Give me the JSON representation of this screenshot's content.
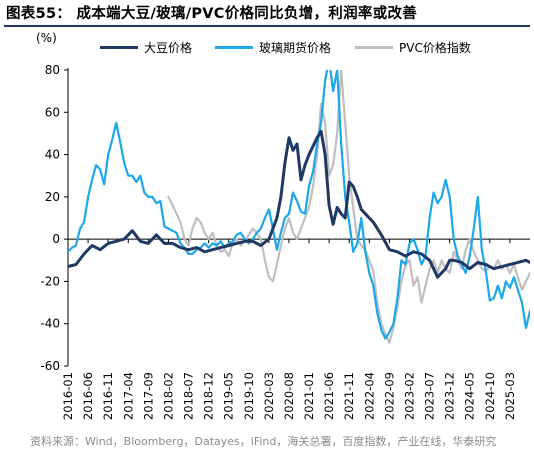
{
  "figure": {
    "title": "图表55：  成本端大豆/玻璃/PVC价格同比负增，利润率或改善",
    "unit_label": "(%)",
    "source": "资料来源：Wind，Bloomberg，Datayes，iFind，海关总署，百度指数，产业在线，华泰研究"
  },
  "chart_data": {
    "type": "line",
    "title": "",
    "xlabel": "",
    "ylabel": "(%)",
    "ylim": [
      -60,
      80
    ],
    "yticks": [
      -60,
      -40,
      -20,
      0,
      20,
      40,
      60,
      80
    ],
    "xlim": [
      "2016-01",
      "2025-08"
    ],
    "xticks": [
      "2016-01",
      "2016-06",
      "2016-11",
      "2017-04",
      "2017-09",
      "2018-02",
      "2018-07",
      "2018-12",
      "2019-05",
      "2019-10",
      "2020-03",
      "2020-08",
      "2021-01",
      "2021-06",
      "2021-11",
      "2022-04",
      "2022-09",
      "2023-02",
      "2023-07",
      "2023-12",
      "2024-05",
      "2024-10",
      "2025-03"
    ],
    "grid": false,
    "legend_position": "top",
    "series": [
      {
        "name": "大豆价格",
        "color": "#1f3864",
        "width": 3,
        "points": [
          [
            "2016-01",
            -13
          ],
          [
            "2016-03",
            -12
          ],
          [
            "2016-05",
            -7
          ],
          [
            "2016-07",
            -3
          ],
          [
            "2016-09",
            -5
          ],
          [
            "2016-11",
            -2
          ],
          [
            "2017-01",
            -1
          ],
          [
            "2017-03",
            0
          ],
          [
            "2017-05",
            4
          ],
          [
            "2017-07",
            -1
          ],
          [
            "2017-09",
            -2
          ],
          [
            "2017-11",
            2
          ],
          [
            "2018-01",
            -2
          ],
          [
            "2018-03",
            -2
          ],
          [
            "2018-05",
            -4
          ],
          [
            "2018-07",
            -5
          ],
          [
            "2018-09",
            -4
          ],
          [
            "2018-11",
            -6
          ],
          [
            "2019-01",
            -5
          ],
          [
            "2019-03",
            -4
          ],
          [
            "2019-05",
            -3
          ],
          [
            "2019-07",
            -2
          ],
          [
            "2019-09",
            -1
          ],
          [
            "2019-11",
            -1
          ],
          [
            "2020-01",
            -3
          ],
          [
            "2020-03",
            0
          ],
          [
            "2020-05",
            10
          ],
          [
            "2020-06",
            20
          ],
          [
            "2020-07",
            36
          ],
          [
            "2020-08",
            48
          ],
          [
            "2020-09",
            42
          ],
          [
            "2020-10",
            45
          ],
          [
            "2020-11",
            28
          ],
          [
            "2020-12",
            35
          ],
          [
            "2021-01",
            40
          ],
          [
            "2021-03",
            48
          ],
          [
            "2021-04",
            51
          ],
          [
            "2021-05",
            40
          ],
          [
            "2021-06",
            16
          ],
          [
            "2021-07",
            7
          ],
          [
            "2021-08",
            15
          ],
          [
            "2021-09",
            12
          ],
          [
            "2021-10",
            10
          ],
          [
            "2021-11",
            27
          ],
          [
            "2021-12",
            25
          ],
          [
            "2022-01",
            20
          ],
          [
            "2022-02",
            14
          ],
          [
            "2022-03",
            12
          ],
          [
            "2022-05",
            8
          ],
          [
            "2022-07",
            2
          ],
          [
            "2022-09",
            -5
          ],
          [
            "2022-11",
            -6
          ],
          [
            "2023-01",
            -8
          ],
          [
            "2023-03",
            -6
          ],
          [
            "2023-05",
            -7
          ],
          [
            "2023-07",
            -10
          ],
          [
            "2023-09",
            -18
          ],
          [
            "2023-11",
            -14
          ],
          [
            "2023-12",
            -10
          ],
          [
            "2024-01",
            -10
          ],
          [
            "2024-03",
            -11
          ],
          [
            "2024-05",
            -14
          ],
          [
            "2024-07",
            -11
          ],
          [
            "2024-09",
            -12
          ],
          [
            "2024-11",
            -14
          ],
          [
            "2025-01",
            -13
          ],
          [
            "2025-03",
            -12
          ],
          [
            "2025-05",
            -11
          ],
          [
            "2025-07",
            -10
          ],
          [
            "2025-08",
            -11
          ]
        ]
      },
      {
        "name": "玻璃期货价格",
        "color": "#1ba7e8",
        "width": 2.2,
        "points": [
          [
            "2016-01",
            -6
          ],
          [
            "2016-02",
            -4
          ],
          [
            "2016-03",
            -3
          ],
          [
            "2016-04",
            5
          ],
          [
            "2016-05",
            8
          ],
          [
            "2016-06",
            20
          ],
          [
            "2016-07",
            28
          ],
          [
            "2016-08",
            35
          ],
          [
            "2016-09",
            33
          ],
          [
            "2016-10",
            26
          ],
          [
            "2016-11",
            40
          ],
          [
            "2016-12",
            47
          ],
          [
            "2017-01",
            55
          ],
          [
            "2017-02",
            46
          ],
          [
            "2017-03",
            36
          ],
          [
            "2017-04",
            30
          ],
          [
            "2017-05",
            30
          ],
          [
            "2017-06",
            27
          ],
          [
            "2017-07",
            30
          ],
          [
            "2017-08",
            22
          ],
          [
            "2017-09",
            20
          ],
          [
            "2017-10",
            20
          ],
          [
            "2017-11",
            17
          ],
          [
            "2017-12",
            18
          ],
          [
            "2018-01",
            6
          ],
          [
            "2018-02",
            5
          ],
          [
            "2018-03",
            4
          ],
          [
            "2018-04",
            3
          ],
          [
            "2018-05",
            -2
          ],
          [
            "2018-06",
            -4
          ],
          [
            "2018-07",
            -7
          ],
          [
            "2018-08",
            -7
          ],
          [
            "2018-09",
            -5
          ],
          [
            "2018-10",
            -4
          ],
          [
            "2018-11",
            -2
          ],
          [
            "2018-12",
            -4
          ],
          [
            "2019-01",
            -2
          ],
          [
            "2019-02",
            -3
          ],
          [
            "2019-03",
            -1
          ],
          [
            "2019-04",
            -4
          ],
          [
            "2019-05",
            -2
          ],
          [
            "2019-06",
            -1
          ],
          [
            "2019-07",
            2
          ],
          [
            "2019-08",
            3
          ],
          [
            "2019-09",
            0
          ],
          [
            "2019-10",
            -2
          ],
          [
            "2019-11",
            0
          ],
          [
            "2019-12",
            3
          ],
          [
            "2020-01",
            5
          ],
          [
            "2020-02",
            10
          ],
          [
            "2020-03",
            14
          ],
          [
            "2020-04",
            5
          ],
          [
            "2020-05",
            -5
          ],
          [
            "2020-06",
            3
          ],
          [
            "2020-07",
            10
          ],
          [
            "2020-08",
            12
          ],
          [
            "2020-09",
            22
          ],
          [
            "2020-10",
            18
          ],
          [
            "2020-11",
            13
          ],
          [
            "2020-12",
            12
          ],
          [
            "2021-01",
            25
          ],
          [
            "2021-02",
            32
          ],
          [
            "2021-03",
            45
          ],
          [
            "2021-04",
            55
          ],
          [
            "2021-05",
            75
          ],
          [
            "2021-06",
            85
          ],
          [
            "2021-07",
            70
          ],
          [
            "2021-08",
            80
          ],
          [
            "2021-09",
            45
          ],
          [
            "2021-10",
            20
          ],
          [
            "2021-11",
            8
          ],
          [
            "2021-12",
            -6
          ],
          [
            "2022-01",
            -2
          ],
          [
            "2022-02",
            10
          ],
          [
            "2022-03",
            -6
          ],
          [
            "2022-04",
            -16
          ],
          [
            "2022-05",
            -22
          ],
          [
            "2022-06",
            -35
          ],
          [
            "2022-07",
            -43
          ],
          [
            "2022-08",
            -47
          ],
          [
            "2022-09",
            -44
          ],
          [
            "2022-10",
            -40
          ],
          [
            "2022-11",
            -28
          ],
          [
            "2022-12",
            -10
          ],
          [
            "2023-01",
            -12
          ],
          [
            "2023-02",
            -2
          ],
          [
            "2023-03",
            0
          ],
          [
            "2023-04",
            -5
          ],
          [
            "2023-05",
            -12
          ],
          [
            "2023-06",
            -8
          ],
          [
            "2023-07",
            10
          ],
          [
            "2023-08",
            22
          ],
          [
            "2023-09",
            17
          ],
          [
            "2023-10",
            20
          ],
          [
            "2023-11",
            28
          ],
          [
            "2023-12",
            20
          ],
          [
            "2024-01",
            0
          ],
          [
            "2024-02",
            -8
          ],
          [
            "2024-03",
            -12
          ],
          [
            "2024-04",
            -16
          ],
          [
            "2024-05",
            -8
          ],
          [
            "2024-06",
            5
          ],
          [
            "2024-07",
            20
          ],
          [
            "2024-08",
            -5
          ],
          [
            "2024-09",
            -15
          ],
          [
            "2024-10",
            -29
          ],
          [
            "2024-11",
            -28
          ],
          [
            "2024-12",
            -22
          ],
          [
            "2025-01",
            -28
          ],
          [
            "2025-02",
            -20
          ],
          [
            "2025-03",
            -23
          ],
          [
            "2025-04",
            -18
          ],
          [
            "2025-05",
            -24
          ],
          [
            "2025-06",
            -30
          ],
          [
            "2025-07",
            -42
          ],
          [
            "2025-08",
            -34
          ]
        ]
      },
      {
        "name": "PVC价格指数",
        "color": "#bfbfbf",
        "width": 2.2,
        "points": [
          [
            "2018-02",
            20
          ],
          [
            "2018-03",
            16
          ],
          [
            "2018-04",
            12
          ],
          [
            "2018-05",
            8
          ],
          [
            "2018-06",
            0
          ],
          [
            "2018-07",
            -3
          ],
          [
            "2018-08",
            5
          ],
          [
            "2018-09",
            10
          ],
          [
            "2018-10",
            8
          ],
          [
            "2018-11",
            3
          ],
          [
            "2018-12",
            0
          ],
          [
            "2019-01",
            3
          ],
          [
            "2019-02",
            -3
          ],
          [
            "2019-03",
            -6
          ],
          [
            "2019-04",
            -5
          ],
          [
            "2019-05",
            -8
          ],
          [
            "2019-06",
            -2
          ],
          [
            "2019-07",
            0
          ],
          [
            "2019-08",
            -3
          ],
          [
            "2019-09",
            -1
          ],
          [
            "2019-10",
            2
          ],
          [
            "2019-11",
            5
          ],
          [
            "2019-12",
            3
          ],
          [
            "2020-01",
            0
          ],
          [
            "2020-02",
            -10
          ],
          [
            "2020-03",
            -18
          ],
          [
            "2020-04",
            -20
          ],
          [
            "2020-05",
            -12
          ],
          [
            "2020-06",
            -3
          ],
          [
            "2020-07",
            5
          ],
          [
            "2020-08",
            10
          ],
          [
            "2020-09",
            3
          ],
          [
            "2020-10",
            0
          ],
          [
            "2020-11",
            5
          ],
          [
            "2020-12",
            10
          ],
          [
            "2021-01",
            15
          ],
          [
            "2021-02",
            25
          ],
          [
            "2021-03",
            40
          ],
          [
            "2021-04",
            64
          ],
          [
            "2021-05",
            55
          ],
          [
            "2021-06",
            30
          ],
          [
            "2021-07",
            35
          ],
          [
            "2021-08",
            50
          ],
          [
            "2021-09",
            80
          ],
          [
            "2021-10",
            55
          ],
          [
            "2021-11",
            30
          ],
          [
            "2021-12",
            15
          ],
          [
            "2022-01",
            0
          ],
          [
            "2022-02",
            -3
          ],
          [
            "2022-03",
            -5
          ],
          [
            "2022-04",
            -10
          ],
          [
            "2022-05",
            -15
          ],
          [
            "2022-06",
            -30
          ],
          [
            "2022-07",
            -40
          ],
          [
            "2022-08",
            -45
          ],
          [
            "2022-09",
            -49
          ],
          [
            "2022-10",
            -42
          ],
          [
            "2022-11",
            -32
          ],
          [
            "2022-12",
            -20
          ],
          [
            "2023-01",
            -12
          ],
          [
            "2023-02",
            -10
          ],
          [
            "2023-03",
            -22
          ],
          [
            "2023-04",
            -18
          ],
          [
            "2023-05",
            -30
          ],
          [
            "2023-06",
            -22
          ],
          [
            "2023-07",
            -14
          ],
          [
            "2023-08",
            -10
          ],
          [
            "2023-09",
            -16
          ],
          [
            "2023-10",
            -10
          ],
          [
            "2023-11",
            -14
          ],
          [
            "2023-12",
            -16
          ],
          [
            "2024-01",
            -6
          ],
          [
            "2024-02",
            -10
          ],
          [
            "2024-03",
            -14
          ],
          [
            "2024-04",
            -5
          ],
          [
            "2024-05",
            0
          ],
          [
            "2024-06",
            -6
          ],
          [
            "2024-07",
            -10
          ],
          [
            "2024-08",
            -14
          ],
          [
            "2024-09",
            -15
          ],
          [
            "2024-10",
            -13
          ],
          [
            "2024-11",
            -14
          ],
          [
            "2024-12",
            -10
          ],
          [
            "2025-01",
            -14
          ],
          [
            "2025-02",
            -12
          ],
          [
            "2025-03",
            -16
          ],
          [
            "2025-04",
            -12
          ],
          [
            "2025-05",
            -18
          ],
          [
            "2025-06",
            -24
          ],
          [
            "2025-07",
            -20
          ],
          [
            "2025-08",
            -16
          ]
        ]
      }
    ]
  }
}
